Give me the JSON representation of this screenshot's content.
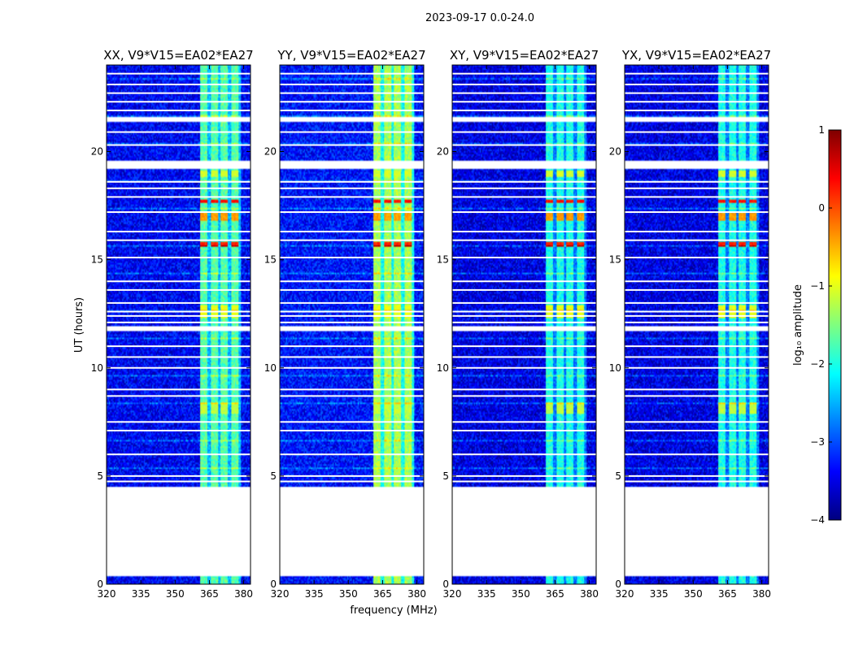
{
  "chart_data": {
    "type": "heatmap",
    "title": "2023-09-17 0.0-24.0",
    "xlabel": "frequency (MHz)",
    "ylabel": "UT (hours)",
    "colorbar_label": "log₁₀ amplitude",
    "colorbar_range": [
      -4,
      1
    ],
    "colorbar_ticks": [
      "1",
      "0",
      "−1",
      "−2",
      "−3",
      "−4"
    ],
    "colormap": [
      "#00007f",
      "#0000ff",
      "#007fff",
      "#00ffff",
      "#7fff7f",
      "#ffff00",
      "#ff7f00",
      "#ff0000",
      "#7f0000"
    ],
    "xlim": [
      320,
      383
    ],
    "ylim": [
      0,
      24
    ],
    "x_ticks": [
      "320",
      "335",
      "350",
      "365",
      "380"
    ],
    "y_ticks": [
      "0",
      "5",
      "10",
      "15",
      "20"
    ],
    "rfi_band_mhz": [
      361,
      379
    ],
    "panels": [
      {
        "title": "XX, V9*V15=EA02*EA27",
        "background_log_amp": -3.4,
        "rfi_log_amp": -1.7
      },
      {
        "title": "YY, V9*V15=EA02*EA27",
        "background_log_amp": -3.3,
        "rfi_log_amp": -1.3
      },
      {
        "title": "XY, V9*V15=EA02*EA27",
        "background_log_amp": -3.5,
        "rfi_log_amp": -2.0
      },
      {
        "title": "YX, V9*V15=EA02*EA27",
        "background_log_amp": -3.5,
        "rfi_log_amp": -2.0
      }
    ],
    "no_data_ut": [
      [
        0.4,
        4.5
      ],
      [
        19.2,
        19.6
      ],
      [
        21.4,
        21.6
      ],
      [
        11.7,
        11.9
      ]
    ],
    "flag_lines_ut": [
      4.75,
      5.0,
      6.0,
      7.1,
      7.5,
      8.7,
      9.0,
      10.0,
      10.5,
      11.0,
      12.1,
      12.4,
      12.6,
      13.0,
      13.6,
      14.0,
      15.1,
      15.9,
      16.3,
      17.2,
      17.9,
      18.3,
      18.6,
      20.3,
      20.9,
      21.9,
      22.3,
      22.7,
      23.1,
      23.6
    ],
    "strong_events": [
      {
        "ut": [
          16.8,
          17.2
        ],
        "log_amp": -0.4
      },
      {
        "ut": [
          17.6,
          17.8
        ],
        "log_amp": 0.3
      },
      {
        "ut": [
          15.6,
          15.8
        ],
        "log_amp": 0.2
      },
      {
        "ut": [
          12.3,
          12.9
        ],
        "log_amp": -1.0
      },
      {
        "ut": [
          7.9,
          8.4
        ],
        "log_amp": -1.2
      },
      {
        "ut": [
          18.8,
          19.1
        ],
        "log_amp": -1.1
      }
    ]
  }
}
